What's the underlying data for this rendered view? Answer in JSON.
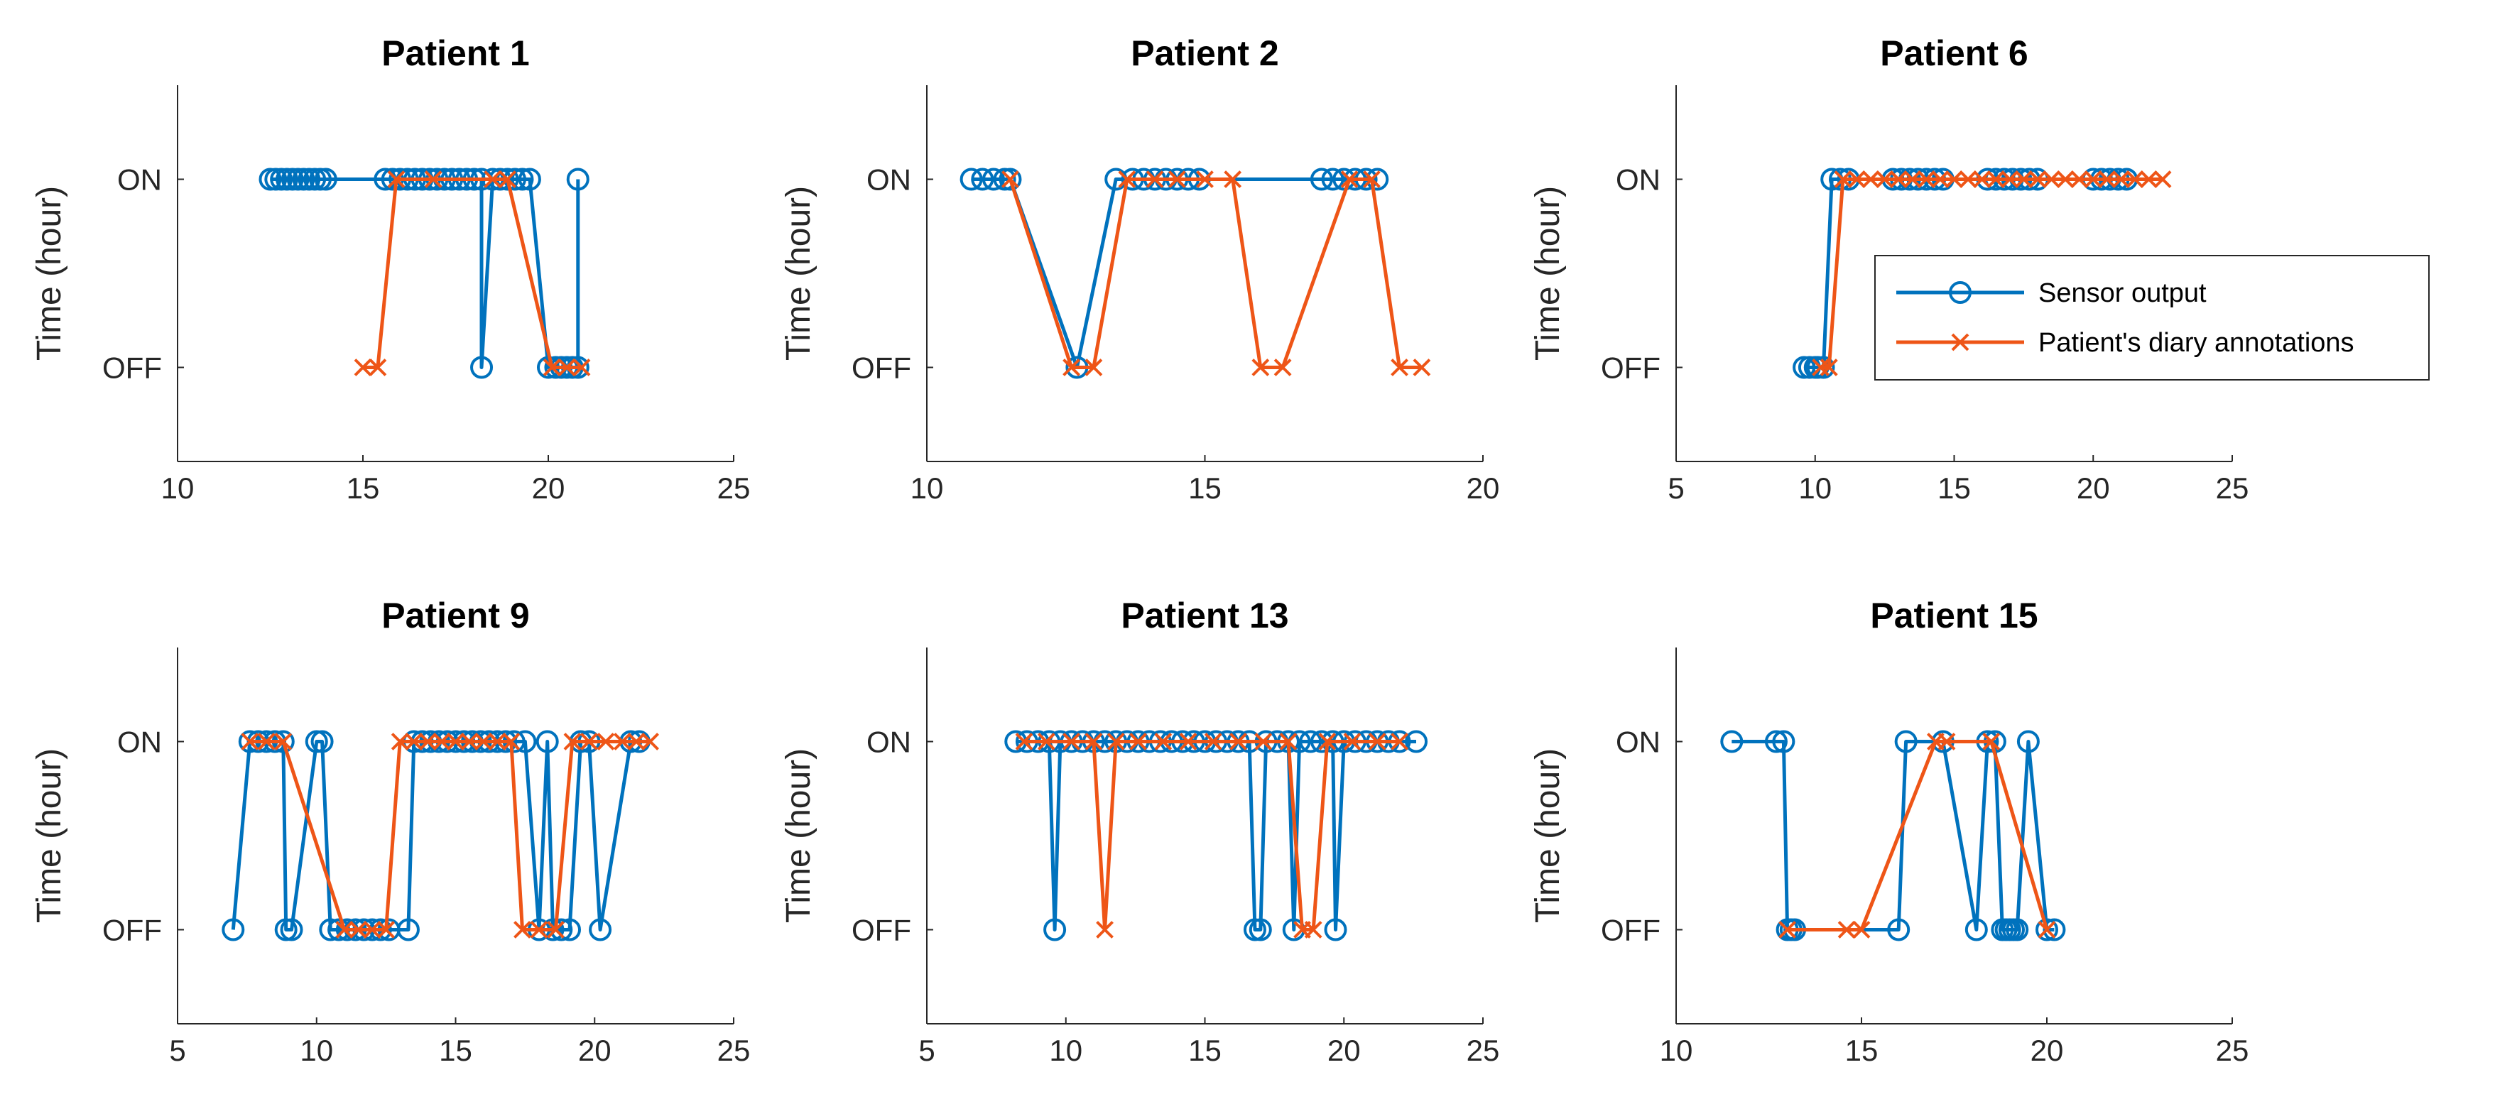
{
  "colors": {
    "sensor": "#0072BD",
    "diary": "#EE5517",
    "axis": "#262626"
  },
  "legend": {
    "sensor_label": "Sensor output",
    "diary_label": "Patient's diary annotations",
    "placement": "inside right of Patient 6 panel"
  },
  "chart_data": [
    {
      "type": "line",
      "title": "Patient 1",
      "xlim": [
        10,
        25
      ],
      "xticks": [
        10,
        15,
        20,
        25
      ],
      "ylabel": "Time (hour)",
      "y_categories": [
        "OFF",
        "ON"
      ],
      "series": [
        {
          "name": "Sensor output",
          "marker": "circle",
          "x": [
            12.5,
            12.65,
            12.8,
            12.95,
            13.1,
            13.25,
            13.4,
            13.55,
            13.7,
            13.85,
            14.0,
            15.6,
            15.8,
            16.0,
            16.2,
            16.4,
            16.6,
            16.8,
            17.0,
            17.2,
            17.4,
            17.6,
            17.8,
            18.0,
            18.2,
            18.2,
            18.5,
            18.7,
            18.9,
            19.1,
            19.3,
            19.5,
            20.0,
            20.2,
            20.35,
            20.5,
            20.65,
            20.8,
            20.8
          ],
          "y": [
            1,
            1,
            1,
            1,
            1,
            1,
            1,
            1,
            1,
            1,
            1,
            1,
            1,
            1,
            1,
            1,
            1,
            1,
            1,
            1,
            1,
            1,
            1,
            1,
            1,
            0,
            1,
            1,
            1,
            1,
            1,
            1,
            0,
            0,
            0,
            0,
            0,
            0,
            1
          ]
        },
        {
          "name": "Patient's diary annotations",
          "marker": "x",
          "x": [
            15.0,
            15.4,
            15.9,
            16.9,
            18.5,
            18.9,
            20.1,
            20.5,
            20.9
          ],
          "y": [
            0,
            0,
            1,
            1,
            1,
            1,
            0,
            0,
            0
          ]
        }
      ]
    },
    {
      "type": "line",
      "title": "Patient 2",
      "xlim": [
        10,
        20
      ],
      "xticks": [
        10,
        15,
        20
      ],
      "ylabel": "Time (hour)",
      "y_categories": [
        "OFF",
        "ON"
      ],
      "series": [
        {
          "name": "Sensor output",
          "marker": "circle",
          "x": [
            10.8,
            11.0,
            11.2,
            11.4,
            11.5,
            12.7,
            13.4,
            13.7,
            13.9,
            14.1,
            14.3,
            14.5,
            14.7,
            14.9,
            17.1,
            17.3,
            17.5,
            17.7,
            17.9,
            18.1
          ],
          "y": [
            1,
            1,
            1,
            1,
            1,
            0,
            1,
            1,
            1,
            1,
            1,
            1,
            1,
            1,
            1,
            1,
            1,
            1,
            1,
            1
          ]
        },
        {
          "name": "Patient's diary annotations",
          "marker": "x",
          "x": [
            11.5,
            12.6,
            13.0,
            13.6,
            14.1,
            14.5,
            15.0,
            15.5,
            16.0,
            16.4,
            17.6,
            18.0,
            18.5,
            18.9
          ],
          "y": [
            1,
            0,
            0,
            1,
            1,
            1,
            1,
            1,
            0,
            0,
            1,
            1,
            0,
            0
          ]
        }
      ]
    },
    {
      "type": "line",
      "title": "Patient 6",
      "xlim": [
        5,
        25
      ],
      "xticks": [
        5,
        10,
        15,
        20,
        25
      ],
      "ylabel": "Time (hour)",
      "y_categories": [
        "OFF",
        "ON"
      ],
      "series": [
        {
          "name": "Sensor output",
          "marker": "circle",
          "x": [
            9.6,
            9.8,
            10.0,
            10.1,
            10.3,
            10.6,
            10.9,
            11.2,
            12.8,
            13.1,
            13.4,
            13.7,
            14.0,
            14.3,
            14.6,
            16.2,
            16.5,
            16.8,
            17.1,
            17.4,
            17.7,
            18.0,
            20.0,
            20.3,
            20.6,
            20.9,
            21.2
          ],
          "y": [
            0,
            0,
            0,
            0,
            0,
            1,
            1,
            1,
            1,
            1,
            1,
            1,
            1,
            1,
            1,
            1,
            1,
            1,
            1,
            1,
            1,
            1,
            1,
            1,
            1,
            1,
            1
          ]
        },
        {
          "name": "Patient's diary annotations",
          "marker": "x",
          "x": [
            10.2,
            10.5,
            11.0,
            11.5,
            12.0,
            12.5,
            13.0,
            13.5,
            14.0,
            14.5,
            15.0,
            15.5,
            16.0,
            16.5,
            17.0,
            17.5,
            18.0,
            18.5,
            19.0,
            19.5,
            20.0,
            20.5,
            21.0,
            21.5,
            22.0,
            22.5
          ],
          "y": [
            0,
            0,
            1,
            1,
            1,
            1,
            1,
            1,
            1,
            1,
            1,
            1,
            1,
            1,
            1,
            1,
            1,
            1,
            1,
            1,
            1,
            1,
            1,
            1,
            1,
            1
          ]
        }
      ]
    },
    {
      "type": "line",
      "title": "Patient 9",
      "xlim": [
        5,
        25
      ],
      "xticks": [
        5,
        10,
        15,
        20,
        25
      ],
      "ylabel": "Time (hour)",
      "y_categories": [
        "OFF",
        "ON"
      ],
      "series": [
        {
          "name": "Sensor output",
          "marker": "circle",
          "x": [
            7.0,
            7.6,
            7.9,
            8.2,
            8.5,
            8.8,
            8.9,
            9.1,
            10.0,
            10.2,
            10.5,
            10.8,
            11.1,
            11.4,
            11.7,
            12.0,
            12.3,
            12.6,
            13.3,
            13.5,
            13.8,
            14.1,
            14.4,
            14.7,
            15.0,
            15.3,
            15.6,
            15.9,
            16.2,
            16.5,
            16.8,
            17.1,
            17.5,
            18.0,
            18.3,
            18.5,
            18.8,
            19.1,
            19.5,
            19.8,
            20.2,
            21.3,
            21.6
          ],
          "y": [
            0,
            1,
            1,
            1,
            1,
            1,
            0,
            0,
            1,
            1,
            0,
            0,
            0,
            0,
            0,
            0,
            0,
            0,
            0,
            1,
            1,
            1,
            1,
            1,
            1,
            1,
            1,
            1,
            1,
            1,
            1,
            1,
            1,
            0,
            1,
            0,
            0,
            0,
            1,
            1,
            0,
            1,
            1
          ]
        },
        {
          "name": "Patient's diary annotations",
          "marker": "x",
          "x": [
            7.6,
            8.2,
            8.8,
            11.0,
            11.5,
            12.0,
            12.5,
            13.0,
            13.5,
            14.0,
            14.5,
            15.0,
            15.5,
            16.0,
            16.5,
            17.0,
            17.4,
            18.0,
            18.6,
            19.2,
            19.8,
            20.4,
            21.0,
            21.5,
            22.0
          ],
          "y": [
            1,
            1,
            1,
            0,
            0,
            0,
            0,
            1,
            1,
            1,
            1,
            1,
            1,
            1,
            1,
            1,
            0,
            0,
            0,
            1,
            1,
            1,
            1,
            1,
            1
          ]
        }
      ]
    },
    {
      "type": "line",
      "title": "Patient 13",
      "xlim": [
        5,
        25
      ],
      "xticks": [
        5,
        10,
        15,
        20,
        25
      ],
      "ylabel": "Time (hour)",
      "y_categories": [
        "OFF",
        "ON"
      ],
      "series": [
        {
          "name": "Sensor output",
          "marker": "circle",
          "x": [
            8.2,
            8.6,
            9.0,
            9.4,
            9.6,
            9.8,
            10.2,
            10.6,
            11.0,
            11.4,
            11.8,
            12.2,
            12.6,
            13.0,
            13.4,
            13.8,
            14.2,
            14.6,
            15.0,
            15.4,
            15.8,
            16.2,
            16.6,
            16.8,
            17.0,
            17.2,
            17.6,
            18.0,
            18.2,
            18.4,
            18.8,
            19.2,
            19.6,
            19.7,
            20.0,
            20.4,
            20.8,
            21.2,
            21.6,
            22.0,
            22.6
          ],
          "y": [
            1,
            1,
            1,
            1,
            0,
            1,
            1,
            1,
            1,
            1,
            1,
            1,
            1,
            1,
            1,
            1,
            1,
            1,
            1,
            1,
            1,
            1,
            1,
            0,
            0,
            1,
            1,
            1,
            0,
            1,
            1,
            1,
            1,
            0,
            1,
            1,
            1,
            1,
            1,
            1,
            1
          ]
        },
        {
          "name": "Patient's diary annotations",
          "marker": "x",
          "x": [
            8.5,
            9.3,
            10.2,
            11.0,
            11.4,
            11.8,
            12.6,
            13.5,
            14.4,
            15.3,
            16.2,
            17.1,
            18.0,
            18.5,
            18.9,
            19.4,
            20.3,
            21.2,
            22.0
          ],
          "y": [
            1,
            1,
            1,
            1,
            0,
            1,
            1,
            1,
            1,
            1,
            1,
            1,
            1,
            0,
            0,
            1,
            1,
            1,
            1
          ]
        }
      ]
    },
    {
      "type": "line",
      "title": "Patient 15",
      "xlim": [
        10,
        25
      ],
      "xticks": [
        10,
        15,
        20,
        25
      ],
      "ylabel": "Time (hour)",
      "y_categories": [
        "OFF",
        "ON"
      ],
      "series": [
        {
          "name": "Sensor output",
          "marker": "circle",
          "x": [
            11.5,
            12.7,
            12.9,
            13.0,
            13.1,
            13.2,
            16.0,
            16.2,
            17.2,
            18.1,
            18.4,
            18.6,
            18.8,
            18.9,
            19.0,
            19.1,
            19.2,
            19.5,
            20.0,
            20.2
          ],
          "y": [
            1,
            1,
            1,
            0,
            0,
            0,
            0,
            1,
            1,
            0,
            1,
            1,
            0,
            0,
            0,
            0,
            0,
            1,
            0,
            0
          ]
        },
        {
          "name": "Patient's diary annotations",
          "marker": "x",
          "x": [
            13.0,
            14.6,
            15.0,
            17.0,
            17.3,
            18.5,
            20.0
          ],
          "y": [
            0,
            0,
            0,
            1,
            1,
            1,
            0
          ]
        }
      ]
    }
  ]
}
